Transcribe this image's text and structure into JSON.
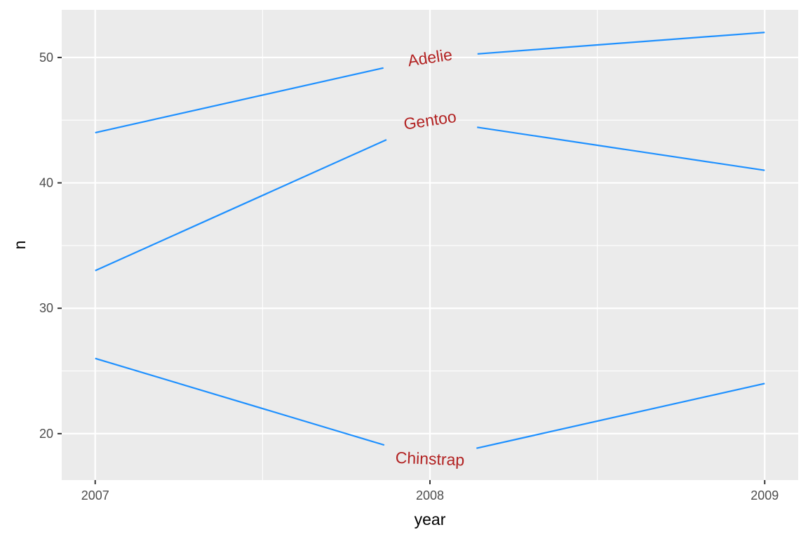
{
  "chart_data": {
    "type": "line",
    "title": "",
    "xlabel": "year",
    "ylabel": "n",
    "x": [
      2007,
      2008,
      2009
    ],
    "x_ticks": [
      "2007",
      "2008",
      "2009"
    ],
    "y_ticks": [
      "20",
      "30",
      "40",
      "50"
    ],
    "xlim": [
      2006.9,
      2009.1
    ],
    "ylim": [
      16.3,
      53.8
    ],
    "grid": true,
    "legend": "none",
    "series": [
      {
        "name": "Adelie",
        "values": [
          44,
          50,
          52
        ]
      },
      {
        "name": "Gentoo",
        "values": [
          33,
          45,
          41
        ]
      },
      {
        "name": "Chinstrap",
        "values": [
          26,
          18,
          24
        ]
      }
    ],
    "colors": {
      "line": "#1E90FF",
      "label": "#B22222",
      "panel": "#EBEBEB",
      "grid": "#FFFFFF",
      "tick_text": "#4D4D4D"
    }
  }
}
